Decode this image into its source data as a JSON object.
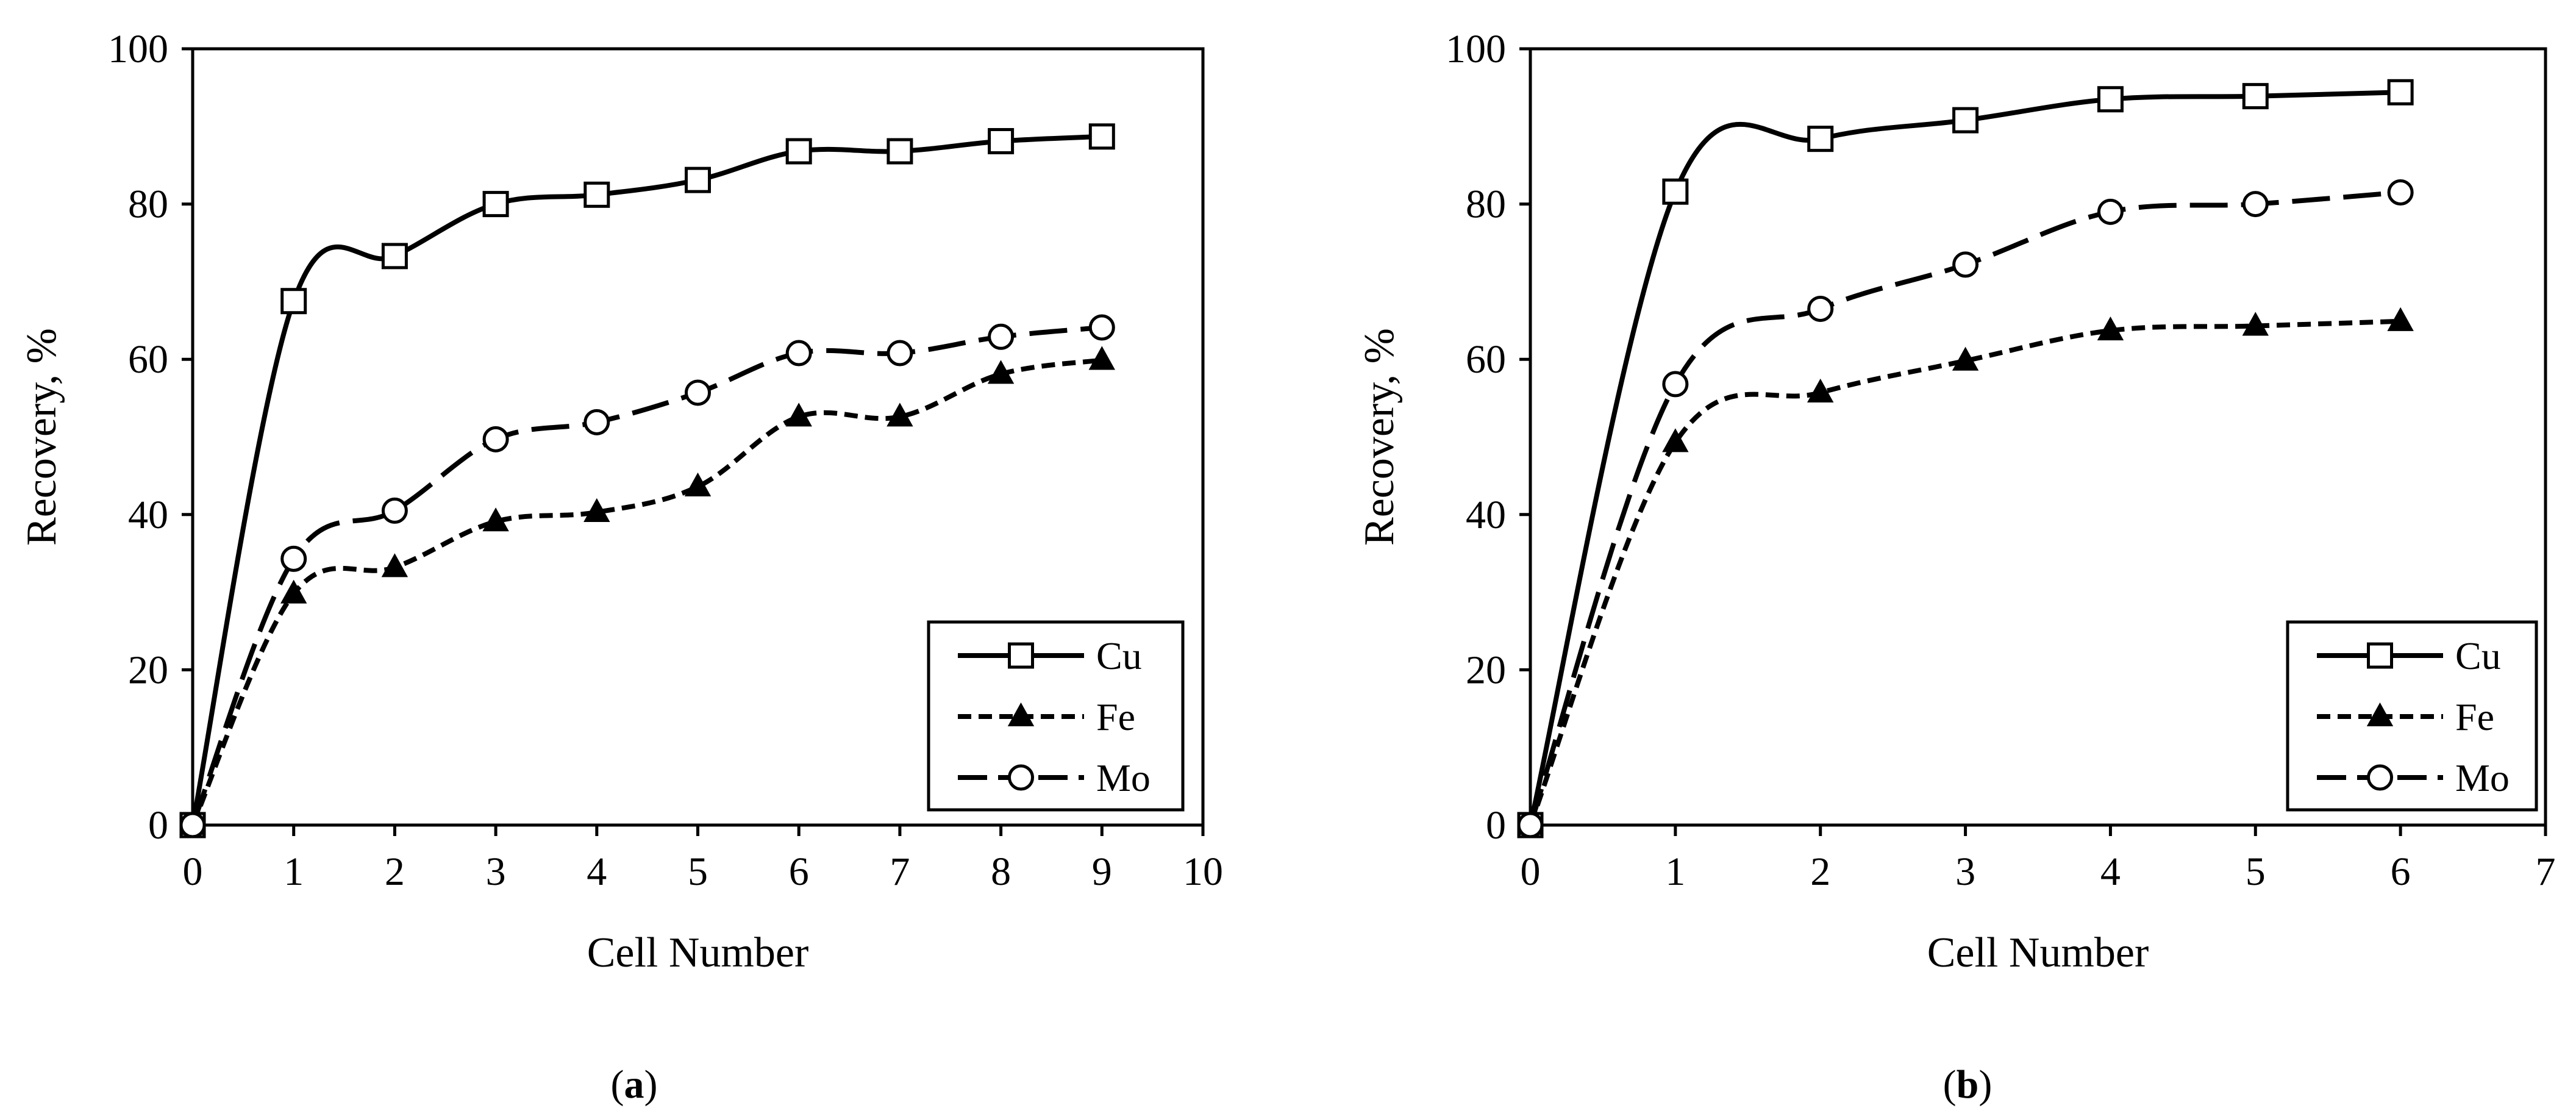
{
  "figure": {
    "panels": [
      {
        "label": "a"
      },
      {
        "label": "b"
      }
    ]
  },
  "chart_data": [
    {
      "type": "line",
      "panel_label": "a",
      "title": "",
      "xlabel": "Cell Number",
      "ylabel": "Recovery, %",
      "xlim": [
        0,
        10
      ],
      "ylim": [
        0,
        100
      ],
      "xticks": [
        0,
        1,
        2,
        3,
        4,
        5,
        6,
        7,
        8,
        9,
        10
      ],
      "yticks": [
        0,
        20,
        40,
        60,
        80,
        100
      ],
      "grid": false,
      "legend_position": "bottom-right",
      "x": [
        0,
        1,
        2,
        3,
        4,
        5,
        6,
        7,
        8,
        9
      ],
      "series": [
        {
          "name": "Cu",
          "marker": "square-open",
          "line": "solid",
          "values": [
            0,
            67.5,
            73.3,
            80.0,
            81.2,
            83.1,
            86.8,
            86.8,
            88.1,
            88.7
          ]
        },
        {
          "name": "Fe",
          "marker": "triangle-filled",
          "line": "dashed",
          "values": [
            0,
            29.8,
            33.2,
            39.1,
            40.3,
            43.6,
            52.6,
            52.6,
            58.1,
            59.9
          ]
        },
        {
          "name": "Mo",
          "marker": "circle-open",
          "line": "long-dash",
          "values": [
            0,
            34.3,
            40.5,
            49.7,
            51.9,
            55.7,
            60.8,
            60.8,
            62.9,
            64.1
          ]
        }
      ]
    },
    {
      "type": "line",
      "panel_label": "b",
      "title": "",
      "xlabel": "Cell Number",
      "ylabel": "Recovery, %",
      "xlim": [
        0,
        7
      ],
      "ylim": [
        0,
        100
      ],
      "xticks": [
        0,
        1,
        2,
        3,
        4,
        5,
        6,
        7
      ],
      "yticks": [
        0,
        20,
        40,
        60,
        80,
        100
      ],
      "grid": false,
      "legend_position": "bottom-right",
      "x": [
        0,
        1,
        2,
        3,
        4,
        5,
        6
      ],
      "series": [
        {
          "name": "Cu",
          "marker": "square-open",
          "line": "solid",
          "values": [
            0,
            81.6,
            88.4,
            90.8,
            93.5,
            93.9,
            94.4
          ]
        },
        {
          "name": "Fe",
          "marker": "triangle-filled",
          "line": "dashed",
          "values": [
            0,
            49.3,
            55.7,
            59.8,
            63.7,
            64.3,
            64.9
          ]
        },
        {
          "name": "Mo",
          "marker": "circle-open",
          "line": "long-dash",
          "values": [
            0,
            56.8,
            66.5,
            72.2,
            79.0,
            80.0,
            81.5
          ]
        }
      ]
    }
  ]
}
